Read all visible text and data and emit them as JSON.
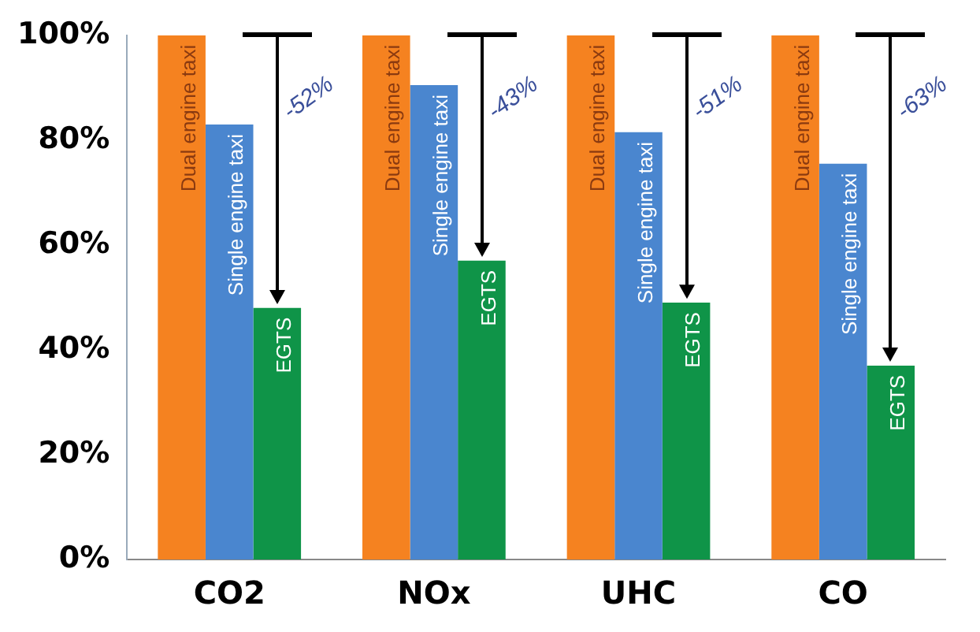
{
  "chart_data": {
    "type": "bar",
    "categories": [
      "CO2",
      "NOx",
      "UHC",
      "CO"
    ],
    "series": [
      {
        "name": "Dual engine taxi",
        "color": "#f58220",
        "values": [
          100,
          100,
          100,
          100
        ]
      },
      {
        "name": "Single engine taxi",
        "color": "#4a86cf",
        "values": [
          83,
          90.5,
          81.5,
          75.5
        ]
      },
      {
        "name": "EGTS",
        "color": "#0f9448",
        "values": [
          48,
          57,
          49,
          37
        ]
      }
    ],
    "ylim": [
      0,
      100
    ],
    "yticks": [
      {
        "value": 0,
        "label": "0%"
      },
      {
        "value": 20,
        "label": "20%"
      },
      {
        "value": 40,
        "label": "40%"
      },
      {
        "value": 60,
        "label": "60%"
      },
      {
        "value": 80,
        "label": "80%"
      },
      {
        "value": 100,
        "label": "100%"
      }
    ],
    "grid": false,
    "legend": false,
    "annotations": [
      "-52%",
      "-43%",
      "-51%",
      "-63%"
    ]
  }
}
